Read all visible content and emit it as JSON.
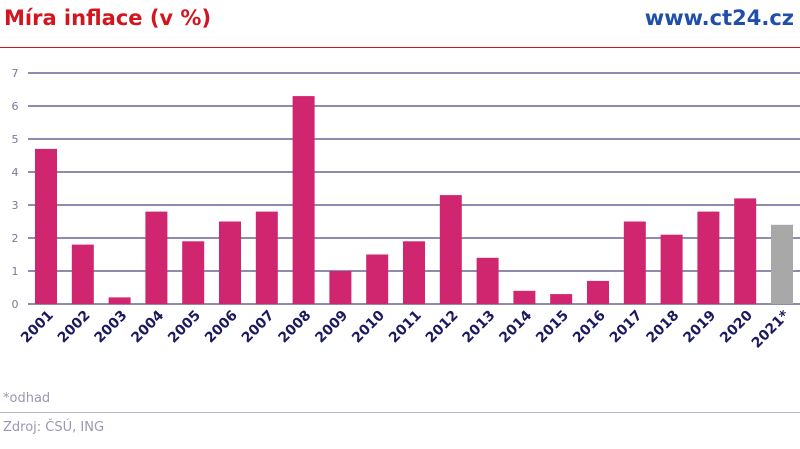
{
  "header": {
    "title": "Míra inflace (v %)",
    "brand": "www.ct24.cz"
  },
  "footer": {
    "note": "*odhad",
    "source": "Zdroj: ČSÚ, ING"
  },
  "chart_data": {
    "type": "bar",
    "title": "Míra inflace (v %)",
    "xlabel": "",
    "ylabel": "",
    "ylim": [
      0,
      7
    ],
    "yticks": [
      "0",
      "1",
      "2",
      "3",
      "4",
      "5",
      "6",
      "7"
    ],
    "grid": true,
    "categories": [
      "2001",
      "2002",
      "2003",
      "2004",
      "2005",
      "2006",
      "2007",
      "2008",
      "2009",
      "2010",
      "2011",
      "2012",
      "2013",
      "2014",
      "2015",
      "2016",
      "2017",
      "2018",
      "2019",
      "2020",
      "2021*"
    ],
    "values": [
      4.7,
      1.8,
      0.2,
      2.8,
      1.9,
      2.5,
      2.8,
      6.3,
      1.0,
      1.5,
      1.9,
      3.3,
      1.4,
      0.4,
      0.3,
      0.7,
      2.5,
      2.1,
      2.8,
      3.2,
      2.4
    ],
    "colors": {
      "actual": "#d0266f",
      "estimate": "#a8a8a8",
      "grid": "#1c1a5e",
      "tick_text": "#7a7896",
      "label_text": "#1c1a5e"
    },
    "estimate_index": 20
  }
}
